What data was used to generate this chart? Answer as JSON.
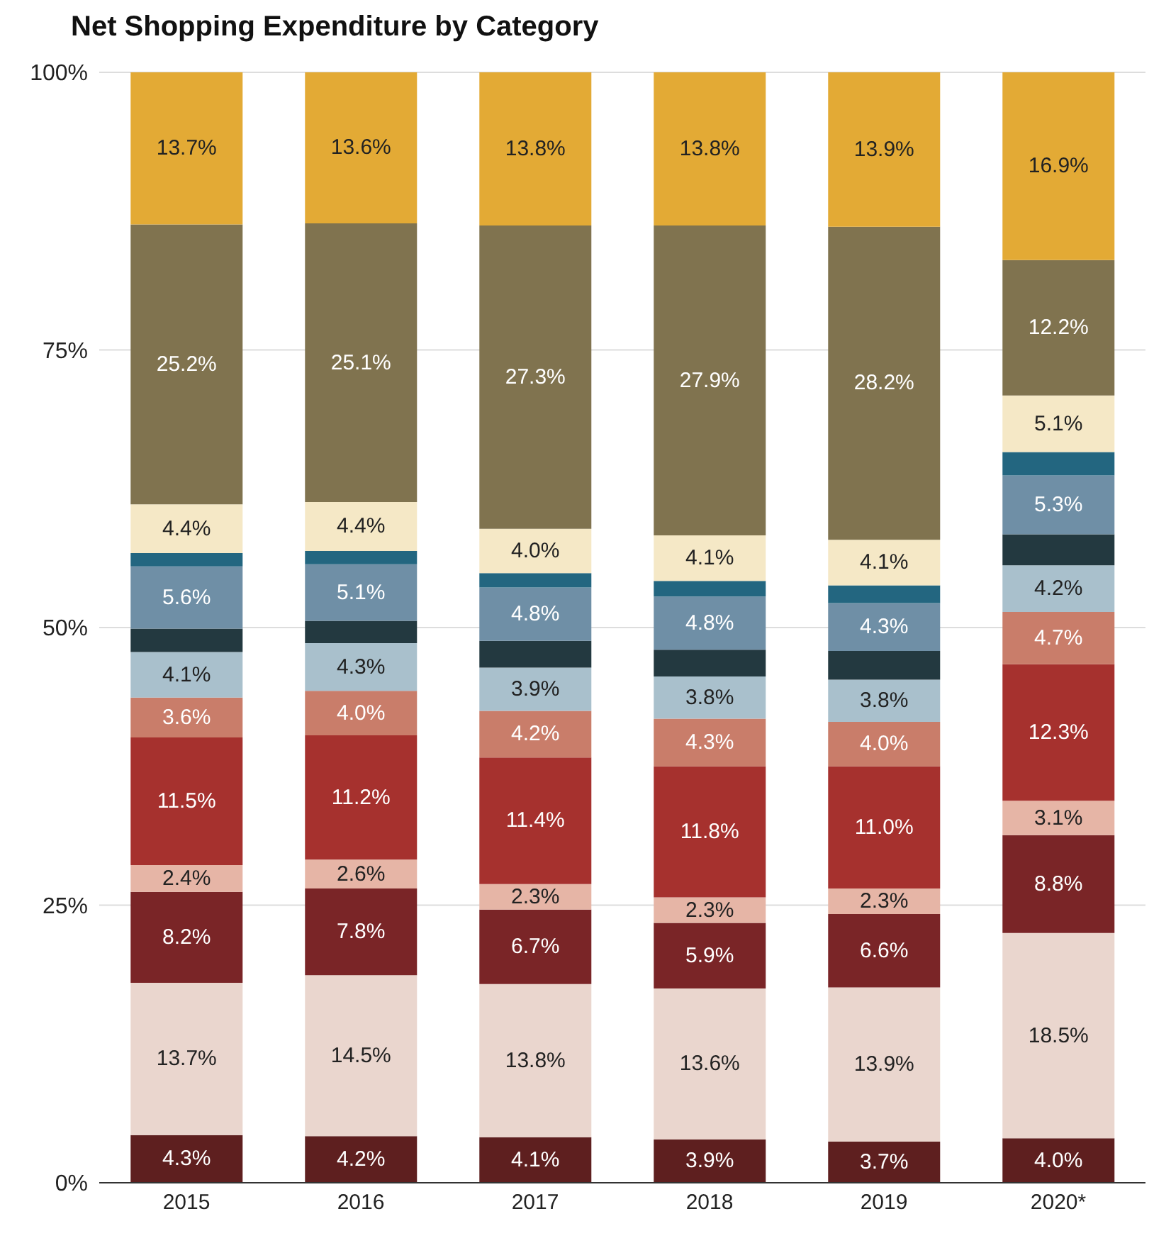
{
  "chart_data": {
    "type": "bar",
    "title": "Net Shopping Expenditure by Category",
    "stacked": true,
    "categories": [
      "2015",
      "2016",
      "2017",
      "2018",
      "2019",
      "2020*"
    ],
    "series": [
      {
        "color": "#5e1f1f",
        "values": [
          4.3,
          4.2,
          4.1,
          3.9,
          3.7,
          4.0
        ],
        "value_labels": [
          "4.3%",
          "4.2%",
          "4.1%",
          "3.9%",
          "3.7%",
          "4.0%"
        ]
      },
      {
        "color": "#ead6ce",
        "values": [
          13.7,
          14.5,
          13.8,
          13.6,
          13.9,
          18.5
        ],
        "value_labels": [
          "13.7%",
          "14.5%",
          "13.8%",
          "13.6%",
          "13.9%",
          "18.5%"
        ]
      },
      {
        "color": "#7a2527",
        "values": [
          8.2,
          7.8,
          6.7,
          5.9,
          6.6,
          8.8
        ],
        "value_labels": [
          "8.2%",
          "7.8%",
          "6.7%",
          "5.9%",
          "6.6%",
          "8.8%"
        ]
      },
      {
        "color": "#e6b5a6",
        "values": [
          2.4,
          2.6,
          2.3,
          2.3,
          2.3,
          3.1
        ],
        "value_labels": [
          "2.4%",
          "2.6%",
          "2.3%",
          "2.3%",
          "2.3%",
          "3.1%"
        ]
      },
      {
        "color": "#a6312e",
        "values": [
          11.5,
          11.2,
          11.4,
          11.8,
          11.0,
          12.3
        ],
        "value_labels": [
          "11.5%",
          "11.2%",
          "11.4%",
          "11.8%",
          "11.0%",
          "12.3%"
        ]
      },
      {
        "color": "#c97d6a",
        "values": [
          3.6,
          4.0,
          4.2,
          4.3,
          4.0,
          4.7
        ],
        "value_labels": [
          "3.6%",
          "4.0%",
          "4.2%",
          "4.3%",
          "4.0%",
          "4.7%"
        ]
      },
      {
        "color": "#a9c0cc",
        "values": [
          4.1,
          4.3,
          3.9,
          3.8,
          3.8,
          4.2
        ],
        "value_labels": [
          "4.1%",
          "4.3%",
          "3.9%",
          "3.8%",
          "3.8%",
          "4.2%"
        ]
      },
      {
        "color": "#233940",
        "values": [
          2.1,
          2.0,
          2.4,
          2.4,
          2.6,
          2.8
        ],
        "value_labels": [
          null,
          null,
          null,
          null,
          null,
          null
        ]
      },
      {
        "color": "#6f8fa6",
        "values": [
          5.6,
          5.1,
          4.8,
          4.8,
          4.3,
          5.3
        ],
        "value_labels": [
          "5.6%",
          "5.1%",
          "4.8%",
          "4.8%",
          "4.3%",
          "5.3%"
        ]
      },
      {
        "color": "#236680",
        "values": [
          1.2,
          1.2,
          1.3,
          1.4,
          1.6,
          2.1
        ],
        "value_labels": [
          null,
          null,
          null,
          null,
          null,
          null
        ]
      },
      {
        "color": "#f5e8c6",
        "values": [
          4.4,
          4.4,
          4.0,
          4.1,
          4.1,
          5.1
        ],
        "value_labels": [
          "4.4%",
          "4.4%",
          "4.0%",
          "4.1%",
          "4.1%",
          "5.1%"
        ]
      },
      {
        "color": "#80734f",
        "values": [
          25.2,
          25.1,
          27.3,
          27.9,
          28.2,
          12.2
        ],
        "value_labels": [
          "25.2%",
          "25.1%",
          "27.3%",
          "27.9%",
          "28.2%",
          "12.2%"
        ]
      },
      {
        "color": "#e3aa35",
        "values": [
          13.7,
          13.6,
          13.8,
          13.8,
          13.9,
          16.9
        ],
        "value_labels": [
          "13.7%",
          "13.6%",
          "13.8%",
          "13.8%",
          "13.9%",
          "16.9%"
        ]
      }
    ],
    "ylim": [
      0,
      100
    ],
    "yticks": [
      {
        "value": 0,
        "label": "0%"
      },
      {
        "value": 25,
        "label": "25%"
      },
      {
        "value": 50,
        "label": "50%"
      },
      {
        "value": 75,
        "label": "75%"
      },
      {
        "value": 100,
        "label": "100%"
      }
    ],
    "grid": "y",
    "legend": false
  }
}
